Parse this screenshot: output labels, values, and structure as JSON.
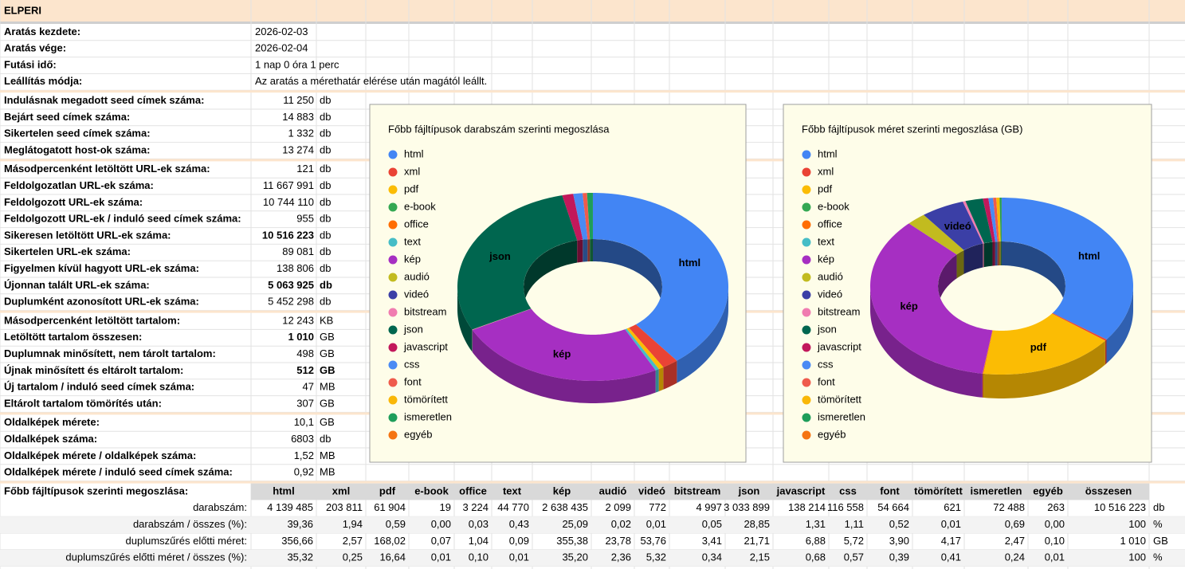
{
  "title": "ELPERI",
  "details": [
    {
      "label": "Aratás kezdete:",
      "value": "2026-02-03"
    },
    {
      "label": "Aratás vége:",
      "value": "2026-02-04"
    },
    {
      "label": "Futási idő:",
      "value": "1 nap 0 óra 1 perc"
    },
    {
      "label": "Leállítás módja:",
      "value": "Az aratás a mérethatár elérése után magától leállt."
    }
  ],
  "metric_groups": [
    [
      {
        "label": "Indulásnak megadott seed címek száma:",
        "value": "11 250",
        "unit": "db"
      },
      {
        "label": "Bejárt seed címek száma:",
        "value": "14 883",
        "unit": "db"
      },
      {
        "label": "Sikertelen seed címek száma:",
        "value": "1 332",
        "unit": "db"
      },
      {
        "label": "Meglátogatott host-ok száma:",
        "value": "13 274",
        "unit": "db"
      }
    ],
    [
      {
        "label": "Másodpercenként letöltött URL-ek száma:",
        "value": "121",
        "unit": "db"
      },
      {
        "label": "Feldolgozatlan URL-ek száma:",
        "value": "11 667 991",
        "unit": "db"
      },
      {
        "label": "Feldolgozott URL-ek száma:",
        "value": "10 744 110",
        "unit": "db"
      },
      {
        "label": "Feldolgozott URL-ek / induló seed címek száma:",
        "value": "955",
        "unit": "db",
        "emphasis": "red"
      },
      {
        "label": "Sikeresen letöltött URL-ek száma:",
        "value": "10 516 223",
        "unit": "db",
        "emphasis": "bold"
      },
      {
        "label": "Sikertelen URL-ek száma:",
        "value": "89 081",
        "unit": "db"
      },
      {
        "label": "Figyelmen kívül hagyott URL-ek száma:",
        "value": "138 806",
        "unit": "db"
      },
      {
        "label": "Újonnan talált URL-ek száma:",
        "value": "5 063 925",
        "unit": "db",
        "emphasis": "bold-all"
      },
      {
        "label": "Duplumként azonosított URL-ek száma:",
        "value": "5 452 298",
        "unit": "db"
      }
    ],
    [
      {
        "label": "Másodpercenként letöltött tartalom:",
        "value": "12 243",
        "unit": "KB"
      },
      {
        "label": "Letöltött tartalom összesen:",
        "value": "1 010",
        "unit": "GB",
        "emphasis": "bold"
      },
      {
        "label": "Duplumnak minősített, nem tárolt tartalom:",
        "value": "498",
        "unit": "GB"
      },
      {
        "label": "Újnak minősített és eltárolt tartalom:",
        "value": "512",
        "unit": "GB",
        "emphasis": "bold-all"
      },
      {
        "label": "Új tartalom / induló seed címek száma:",
        "value": "47",
        "unit": "MB",
        "emphasis": "red"
      },
      {
        "label": "Eltárolt tartalom tömörítés után:",
        "value": "307",
        "unit": "GB"
      }
    ],
    [
      {
        "label": "Oldalképek mérete:",
        "value": "10,1",
        "unit": "GB"
      },
      {
        "label": "Oldalképek száma:",
        "value": "6803",
        "unit": "db"
      },
      {
        "label": "Oldalképek mérete  / oldalképek száma:",
        "value": "1,52",
        "unit": "MB"
      },
      {
        "label": "Oldalképek mérete  / induló seed címek száma:",
        "value": "0,92",
        "unit": "MB",
        "emphasis": "red"
      }
    ]
  ],
  "distribution": {
    "label": "Főbb fájltípusok szerinti megoszlása:",
    "columns": [
      "html",
      "xml",
      "pdf",
      "e-book",
      "office",
      "text",
      "kép",
      "audió",
      "videó",
      "bitstream",
      "json",
      "javascript",
      "css",
      "font",
      "tömörített",
      "ismeretlen",
      "egyéb",
      "összesen"
    ],
    "rows": [
      {
        "label": "darabszám:",
        "cells": [
          "4 139 485",
          "203 811",
          "61 904",
          "19",
          "3 224",
          "44 770",
          "2 638 435",
          "2 099",
          "772",
          "4 997",
          "3 033 899",
          "138 214",
          "116 558",
          "54 664",
          "621",
          "72 488",
          "263",
          "10 516 223"
        ],
        "unit": "db"
      },
      {
        "label": "darabszám / összes (%):",
        "cells": [
          "39,36",
          "1,94",
          "0,59",
          "0,00",
          "0,03",
          "0,43",
          "25,09",
          "0,02",
          "0,01",
          "0,05",
          "28,85",
          "1,31",
          "1,11",
          "0,52",
          "0,01",
          "0,69",
          "0,00",
          "100"
        ],
        "unit": "%"
      },
      {
        "label": "duplumszűrés előtti méret:",
        "cells": [
          "356,66",
          "2,57",
          "168,02",
          "0,07",
          "1,04",
          "0,09",
          "355,38",
          "23,78",
          "53,76",
          "3,41",
          "21,71",
          "6,88",
          "5,72",
          "3,90",
          "4,17",
          "2,47",
          "0,10",
          "1 010"
        ],
        "unit": "GB"
      },
      {
        "label": "duplumszűrés előtti méret / összes (%):",
        "cells": [
          "35,32",
          "0,25",
          "16,64",
          "0,01",
          "0,10",
          "0,01",
          "35,20",
          "2,36",
          "5,32",
          "0,34",
          "2,15",
          "0,68",
          "0,57",
          "0,39",
          "0,41",
          "0,24",
          "0,01",
          "100"
        ],
        "unit": "%"
      }
    ]
  },
  "chart_data": [
    {
      "type": "pie",
      "donut": true,
      "title": "Főbb fájltípusok darabszám szerinti megoszlása",
      "title_color": "#a3281a",
      "categories": [
        "html",
        "xml",
        "pdf",
        "e-book",
        "office",
        "text",
        "kép",
        "audió",
        "videó",
        "bitstream",
        "json",
        "javascript",
        "css",
        "font",
        "tömörített",
        "ismeretlen",
        "egyéb"
      ],
      "values": [
        4139485,
        203811,
        61904,
        19,
        3224,
        44770,
        2638435,
        2099,
        772,
        4997,
        3033899,
        138214,
        116558,
        54664,
        621,
        72488,
        263
      ],
      "colors": [
        "#4285f4",
        "#ea4335",
        "#fbbc04",
        "#34a853",
        "#ff6d01",
        "#46bdc6",
        "#a62fc2",
        "#c2bb1f",
        "#3b3fa6",
        "#f07cb0",
        "#00664f",
        "#c2185b",
        "#4a8af4",
        "#ef5b4c",
        "#f9b707",
        "#1e9e5a",
        "#f57412"
      ]
    },
    {
      "type": "pie",
      "donut": true,
      "title": "Főbb fájltípusok méret szerinti megoszlása (GB)",
      "title_color": "#3d6cb0",
      "categories": [
        "html",
        "xml",
        "pdf",
        "e-book",
        "office",
        "text",
        "kép",
        "audió",
        "videó",
        "bitstream",
        "json",
        "javascript",
        "css",
        "font",
        "tömörített",
        "ismeretlen",
        "egyéb"
      ],
      "values": [
        356.66,
        2.57,
        168.02,
        0.07,
        1.04,
        0.09,
        355.38,
        23.78,
        53.76,
        3.41,
        21.71,
        6.88,
        5.72,
        3.9,
        4.17,
        2.47,
        0.1
      ],
      "colors": [
        "#4285f4",
        "#ea4335",
        "#fbbc04",
        "#34a853",
        "#ff6d01",
        "#46bdc6",
        "#a62fc2",
        "#c2bb1f",
        "#3b3fa6",
        "#f07cb0",
        "#00664f",
        "#c2185b",
        "#4a8af4",
        "#ef5b4c",
        "#f9b707",
        "#1e9e5a",
        "#f57412"
      ]
    }
  ]
}
